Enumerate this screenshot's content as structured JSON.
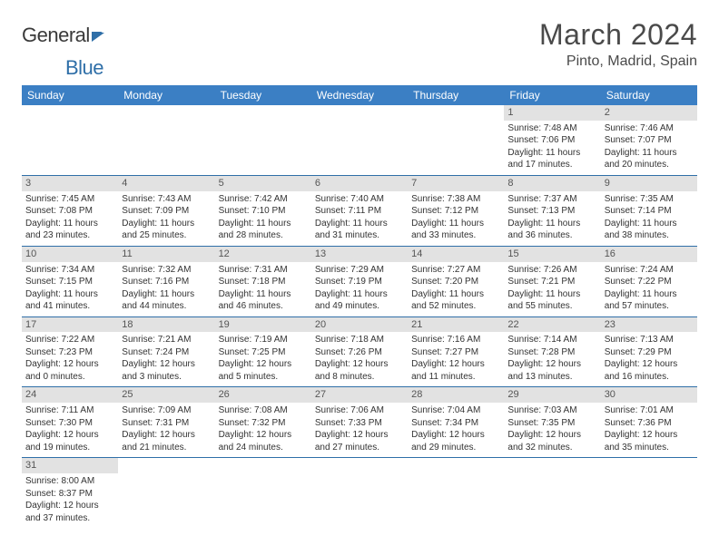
{
  "logo": {
    "general": "General",
    "blue": "Blue"
  },
  "title": "March 2024",
  "location": "Pinto, Madrid, Spain",
  "colors": {
    "header_bg": "#3b7fc4",
    "header_text": "#ffffff",
    "daynum_bg": "#e2e2e2",
    "row_border": "#2f6fa8",
    "text": "#333333",
    "logo_blue": "#2f6fa8"
  },
  "weekdays": [
    "Sunday",
    "Monday",
    "Tuesday",
    "Wednesday",
    "Thursday",
    "Friday",
    "Saturday"
  ],
  "weeks": [
    [
      {
        "day": "",
        "lines": [
          "",
          "",
          "",
          ""
        ]
      },
      {
        "day": "",
        "lines": [
          "",
          "",
          "",
          ""
        ]
      },
      {
        "day": "",
        "lines": [
          "",
          "",
          "",
          ""
        ]
      },
      {
        "day": "",
        "lines": [
          "",
          "",
          "",
          ""
        ]
      },
      {
        "day": "",
        "lines": [
          "",
          "",
          "",
          ""
        ]
      },
      {
        "day": "1",
        "lines": [
          "Sunrise: 7:48 AM",
          "Sunset: 7:06 PM",
          "Daylight: 11 hours",
          "and 17 minutes."
        ]
      },
      {
        "day": "2",
        "lines": [
          "Sunrise: 7:46 AM",
          "Sunset: 7:07 PM",
          "Daylight: 11 hours",
          "and 20 minutes."
        ]
      }
    ],
    [
      {
        "day": "3",
        "lines": [
          "Sunrise: 7:45 AM",
          "Sunset: 7:08 PM",
          "Daylight: 11 hours",
          "and 23 minutes."
        ]
      },
      {
        "day": "4",
        "lines": [
          "Sunrise: 7:43 AM",
          "Sunset: 7:09 PM",
          "Daylight: 11 hours",
          "and 25 minutes."
        ]
      },
      {
        "day": "5",
        "lines": [
          "Sunrise: 7:42 AM",
          "Sunset: 7:10 PM",
          "Daylight: 11 hours",
          "and 28 minutes."
        ]
      },
      {
        "day": "6",
        "lines": [
          "Sunrise: 7:40 AM",
          "Sunset: 7:11 PM",
          "Daylight: 11 hours",
          "and 31 minutes."
        ]
      },
      {
        "day": "7",
        "lines": [
          "Sunrise: 7:38 AM",
          "Sunset: 7:12 PM",
          "Daylight: 11 hours",
          "and 33 minutes."
        ]
      },
      {
        "day": "8",
        "lines": [
          "Sunrise: 7:37 AM",
          "Sunset: 7:13 PM",
          "Daylight: 11 hours",
          "and 36 minutes."
        ]
      },
      {
        "day": "9",
        "lines": [
          "Sunrise: 7:35 AM",
          "Sunset: 7:14 PM",
          "Daylight: 11 hours",
          "and 38 minutes."
        ]
      }
    ],
    [
      {
        "day": "10",
        "lines": [
          "Sunrise: 7:34 AM",
          "Sunset: 7:15 PM",
          "Daylight: 11 hours",
          "and 41 minutes."
        ]
      },
      {
        "day": "11",
        "lines": [
          "Sunrise: 7:32 AM",
          "Sunset: 7:16 PM",
          "Daylight: 11 hours",
          "and 44 minutes."
        ]
      },
      {
        "day": "12",
        "lines": [
          "Sunrise: 7:31 AM",
          "Sunset: 7:18 PM",
          "Daylight: 11 hours",
          "and 46 minutes."
        ]
      },
      {
        "day": "13",
        "lines": [
          "Sunrise: 7:29 AM",
          "Sunset: 7:19 PM",
          "Daylight: 11 hours",
          "and 49 minutes."
        ]
      },
      {
        "day": "14",
        "lines": [
          "Sunrise: 7:27 AM",
          "Sunset: 7:20 PM",
          "Daylight: 11 hours",
          "and 52 minutes."
        ]
      },
      {
        "day": "15",
        "lines": [
          "Sunrise: 7:26 AM",
          "Sunset: 7:21 PM",
          "Daylight: 11 hours",
          "and 55 minutes."
        ]
      },
      {
        "day": "16",
        "lines": [
          "Sunrise: 7:24 AM",
          "Sunset: 7:22 PM",
          "Daylight: 11 hours",
          "and 57 minutes."
        ]
      }
    ],
    [
      {
        "day": "17",
        "lines": [
          "Sunrise: 7:22 AM",
          "Sunset: 7:23 PM",
          "Daylight: 12 hours",
          "and 0 minutes."
        ]
      },
      {
        "day": "18",
        "lines": [
          "Sunrise: 7:21 AM",
          "Sunset: 7:24 PM",
          "Daylight: 12 hours",
          "and 3 minutes."
        ]
      },
      {
        "day": "19",
        "lines": [
          "Sunrise: 7:19 AM",
          "Sunset: 7:25 PM",
          "Daylight: 12 hours",
          "and 5 minutes."
        ]
      },
      {
        "day": "20",
        "lines": [
          "Sunrise: 7:18 AM",
          "Sunset: 7:26 PM",
          "Daylight: 12 hours",
          "and 8 minutes."
        ]
      },
      {
        "day": "21",
        "lines": [
          "Sunrise: 7:16 AM",
          "Sunset: 7:27 PM",
          "Daylight: 12 hours",
          "and 11 minutes."
        ]
      },
      {
        "day": "22",
        "lines": [
          "Sunrise: 7:14 AM",
          "Sunset: 7:28 PM",
          "Daylight: 12 hours",
          "and 13 minutes."
        ]
      },
      {
        "day": "23",
        "lines": [
          "Sunrise: 7:13 AM",
          "Sunset: 7:29 PM",
          "Daylight: 12 hours",
          "and 16 minutes."
        ]
      }
    ],
    [
      {
        "day": "24",
        "lines": [
          "Sunrise: 7:11 AM",
          "Sunset: 7:30 PM",
          "Daylight: 12 hours",
          "and 19 minutes."
        ]
      },
      {
        "day": "25",
        "lines": [
          "Sunrise: 7:09 AM",
          "Sunset: 7:31 PM",
          "Daylight: 12 hours",
          "and 21 minutes."
        ]
      },
      {
        "day": "26",
        "lines": [
          "Sunrise: 7:08 AM",
          "Sunset: 7:32 PM",
          "Daylight: 12 hours",
          "and 24 minutes."
        ]
      },
      {
        "day": "27",
        "lines": [
          "Sunrise: 7:06 AM",
          "Sunset: 7:33 PM",
          "Daylight: 12 hours",
          "and 27 minutes."
        ]
      },
      {
        "day": "28",
        "lines": [
          "Sunrise: 7:04 AM",
          "Sunset: 7:34 PM",
          "Daylight: 12 hours",
          "and 29 minutes."
        ]
      },
      {
        "day": "29",
        "lines": [
          "Sunrise: 7:03 AM",
          "Sunset: 7:35 PM",
          "Daylight: 12 hours",
          "and 32 minutes."
        ]
      },
      {
        "day": "30",
        "lines": [
          "Sunrise: 7:01 AM",
          "Sunset: 7:36 PM",
          "Daylight: 12 hours",
          "and 35 minutes."
        ]
      }
    ],
    [
      {
        "day": "31",
        "lines": [
          "Sunrise: 8:00 AM",
          "Sunset: 8:37 PM",
          "Daylight: 12 hours",
          "and 37 minutes."
        ]
      },
      {
        "day": "",
        "lines": [
          "",
          "",
          "",
          ""
        ]
      },
      {
        "day": "",
        "lines": [
          "",
          "",
          "",
          ""
        ]
      },
      {
        "day": "",
        "lines": [
          "",
          "",
          "",
          ""
        ]
      },
      {
        "day": "",
        "lines": [
          "",
          "",
          "",
          ""
        ]
      },
      {
        "day": "",
        "lines": [
          "",
          "",
          "",
          ""
        ]
      },
      {
        "day": "",
        "lines": [
          "",
          "",
          "",
          ""
        ]
      }
    ]
  ]
}
